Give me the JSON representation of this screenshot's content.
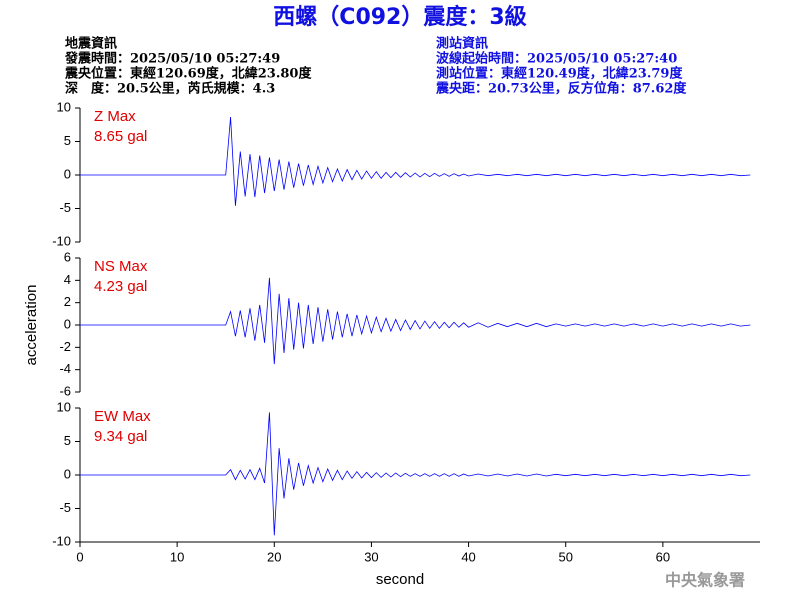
{
  "header": {
    "title": "西螺（C092）震度：3級",
    "left": [
      "地震資訊",
      "發震時間：2025/05/10 05:27:49",
      "震央位置：東經120.69度，北緯23.80度",
      "深　度：20.5公里，芮氏規模：4.3"
    ],
    "right": [
      "測站資訊",
      "波線起始時間：2025/05/10 05:27:40",
      "測站位置：東經120.49度，北緯23.79度",
      "震央距：20.73公里，反方位角：87.62度"
    ]
  },
  "footer": "中央氣象署",
  "chart_data": [
    {
      "type": "line",
      "color": "#0000ff",
      "annotation_color": "#e00000",
      "annotations": [
        "Z Max",
        "8.65 gal"
      ],
      "xlim": [
        0,
        70
      ],
      "ylim": [
        -10,
        10
      ],
      "yticks": [
        -10,
        -5,
        0,
        5,
        10
      ],
      "x": [
        0,
        15,
        15.5,
        16,
        16.5,
        17,
        17.5,
        18,
        18.5,
        19,
        19.5,
        20,
        20.5,
        21,
        21.5,
        22,
        22.5,
        23,
        23.5,
        24,
        24.5,
        25,
        25.5,
        26,
        26.5,
        27,
        27.5,
        28,
        28.5,
        29,
        29.5,
        30,
        30.5,
        31,
        31.5,
        32,
        32.5,
        33,
        33.5,
        34,
        34.5,
        35,
        35.5,
        36,
        36.5,
        37,
        37.5,
        38,
        38.5,
        39,
        39.5,
        40,
        41,
        42,
        43,
        44,
        45,
        46,
        47,
        48,
        49,
        50,
        51,
        52,
        53,
        54,
        55,
        56,
        57,
        58,
        59,
        60,
        61,
        62,
        63,
        64,
        65,
        66,
        67,
        68,
        69
      ],
      "values": [
        0,
        0,
        8.65,
        -4.6,
        3.5,
        -3.2,
        3.1,
        -3.3,
        2.9,
        -2.7,
        2.6,
        -2.4,
        2.3,
        -2.2,
        2.0,
        -1.9,
        1.7,
        -1.6,
        1.5,
        -1.4,
        1.3,
        -1.2,
        1.1,
        -1.0,
        0.9,
        -0.9,
        0.8,
        -0.7,
        0.7,
        -0.6,
        0.6,
        -0.5,
        0.5,
        -0.5,
        0.4,
        -0.4,
        0.4,
        -0.35,
        0.35,
        -0.3,
        0.3,
        -0.3,
        0.25,
        -0.25,
        0.25,
        -0.2,
        0.2,
        -0.2,
        0.2,
        -0.15,
        0.15,
        -0.15,
        0.15,
        -0.1,
        0.1,
        -0.1,
        0.1,
        -0.1,
        0.1,
        -0.1,
        0.1,
        -0.1,
        0.1,
        -0.1,
        0.1,
        -0.1,
        0.1,
        -0.1,
        0.1,
        -0.1,
        0.1,
        -0.1,
        0.1,
        -0.1,
        0.1,
        -0.1,
        0.1,
        -0.1,
        0.1,
        -0.1,
        0
      ]
    },
    {
      "type": "line",
      "color": "#0000ff",
      "annotation_color": "#e00000",
      "annotations": [
        "NS Max",
        "4.23 gal"
      ],
      "ylabel": "acceleration",
      "xlim": [
        0,
        70
      ],
      "ylim": [
        -6,
        6
      ],
      "yticks": [
        -6,
        -4,
        -2,
        0,
        2,
        4,
        6
      ],
      "x": [
        0,
        15,
        15.5,
        16,
        16.5,
        17,
        17.5,
        18,
        18.5,
        19,
        19.5,
        20,
        20.5,
        21,
        21.5,
        22,
        22.5,
        23,
        23.5,
        24,
        24.5,
        25,
        25.5,
        26,
        26.5,
        27,
        27.5,
        28,
        28.5,
        29,
        29.5,
        30,
        30.5,
        31,
        31.5,
        32,
        32.5,
        33,
        33.5,
        34,
        34.5,
        35,
        35.5,
        36,
        36.5,
        37,
        37.5,
        38,
        38.5,
        39,
        39.5,
        40,
        41,
        42,
        43,
        44,
        45,
        46,
        47,
        48,
        49,
        50,
        51,
        52,
        53,
        54,
        55,
        56,
        57,
        58,
        59,
        60,
        61,
        62,
        63,
        64,
        65,
        66,
        67,
        68,
        69
      ],
      "values": [
        0,
        0,
        1.2,
        -1.0,
        1.3,
        -1.1,
        1.5,
        -1.4,
        1.8,
        -1.6,
        4.23,
        -3.5,
        2.8,
        -2.5,
        2.4,
        -2.2,
        2.0,
        -2.1,
        1.8,
        -1.7,
        1.6,
        -1.5,
        1.4,
        -1.3,
        1.2,
        -1.1,
        1.0,
        -1.0,
        0.9,
        -0.8,
        0.8,
        -0.7,
        0.7,
        -0.6,
        0.6,
        -0.55,
        0.5,
        -0.5,
        0.45,
        -0.4,
        0.4,
        -0.35,
        0.35,
        -0.3,
        0.3,
        -0.3,
        0.25,
        -0.25,
        0.25,
        -0.2,
        0.2,
        -0.2,
        0.2,
        -0.2,
        0.15,
        -0.15,
        0.15,
        -0.15,
        0.15,
        -0.15,
        0.1,
        -0.1,
        0.1,
        -0.1,
        0.1,
        -0.1,
        0.1,
        -0.1,
        0.1,
        -0.1,
        0.1,
        -0.1,
        0.1,
        -0.1,
        0.1,
        -0.1,
        0.1,
        -0.1,
        0.1,
        -0.1,
        0
      ]
    },
    {
      "type": "line",
      "color": "#0000ff",
      "annotation_color": "#e00000",
      "annotations": [
        "EW Max",
        "9.34 gal"
      ],
      "xlabel": "second",
      "xlim": [
        0,
        70
      ],
      "ylim": [
        -10,
        10
      ],
      "yticks": [
        -10,
        -5,
        0,
        5,
        10
      ],
      "xticks": [
        0,
        10,
        20,
        30,
        40,
        50,
        60
      ],
      "x": [
        0,
        15,
        15.5,
        16,
        16.5,
        17,
        17.5,
        18,
        18.5,
        19,
        19.5,
        20,
        20.5,
        21,
        21.5,
        22,
        22.5,
        23,
        23.5,
        24,
        24.5,
        25,
        25.5,
        26,
        26.5,
        27,
        27.5,
        28,
        28.5,
        29,
        29.5,
        30,
        30.5,
        31,
        31.5,
        32,
        32.5,
        33,
        33.5,
        34,
        34.5,
        35,
        35.5,
        36,
        36.5,
        37,
        37.5,
        38,
        38.5,
        39,
        39.5,
        40,
        41,
        42,
        43,
        44,
        45,
        46,
        47,
        48,
        49,
        50,
        51,
        52,
        53,
        54,
        55,
        56,
        57,
        58,
        59,
        60,
        61,
        62,
        63,
        64,
        65,
        66,
        67,
        68,
        69
      ],
      "values": [
        0,
        0,
        0.8,
        -0.7,
        0.7,
        -0.6,
        0.8,
        -0.7,
        1.0,
        -1.2,
        9.34,
        -9.0,
        4.0,
        -3.5,
        2.5,
        -2.2,
        1.8,
        -1.6,
        1.4,
        -1.2,
        1.1,
        -1.0,
        0.9,
        -0.8,
        0.7,
        -0.7,
        0.6,
        -0.5,
        0.5,
        -0.45,
        0.4,
        -0.4,
        0.35,
        -0.35,
        0.3,
        -0.3,
        0.3,
        -0.25,
        0.25,
        -0.2,
        0.2,
        -0.2,
        0.2,
        -0.2,
        0.2,
        -0.2,
        0.2,
        -0.2,
        0.2,
        -0.2,
        0.15,
        -0.15,
        0.15,
        -0.15,
        0.15,
        -0.15,
        0.15,
        -0.15,
        0.15,
        -0.15,
        0.1,
        -0.1,
        0.1,
        -0.1,
        0.1,
        -0.1,
        0.1,
        -0.1,
        0.1,
        -0.1,
        0.1,
        -0.1,
        0.1,
        -0.1,
        0.1,
        -0.1,
        0.1,
        -0.1,
        0.1,
        -0.1,
        0
      ]
    }
  ]
}
